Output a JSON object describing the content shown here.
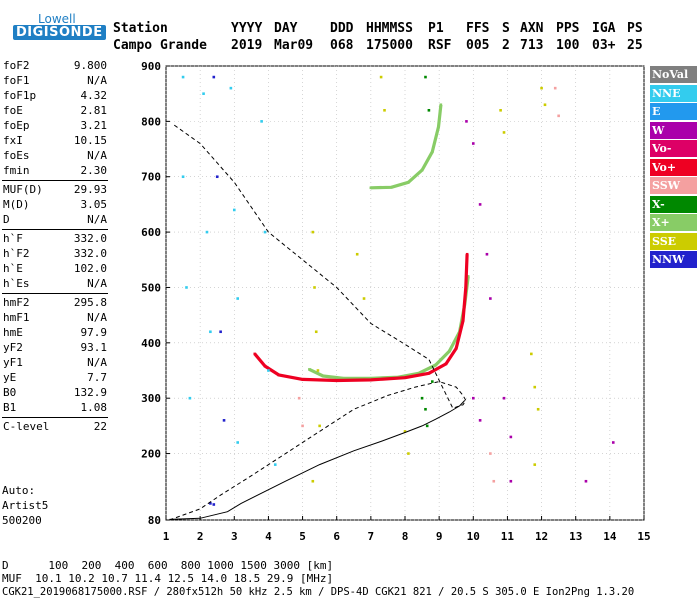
{
  "logo": {
    "line1": "Lowell",
    "line2": "DIGISONDE"
  },
  "header": {
    "labels": [
      "Station",
      "YYYY",
      "DAY",
      "DDD",
      "HHMMSS",
      "P1",
      "FFS",
      "S",
      "AXN",
      "PPS",
      "IGA",
      "PS"
    ],
    "values": [
      "Campo Grande",
      "2019",
      "Mar09",
      "068",
      "175000",
      "RSF",
      "005",
      "2",
      "713",
      "100",
      "03+",
      "25"
    ]
  },
  "params": [
    [
      {
        "k": "foF2",
        "v": "9.800"
      },
      {
        "k": "foF1",
        "v": "N/A"
      },
      {
        "k": "foF1p",
        "v": "4.32"
      },
      {
        "k": "foE",
        "v": "2.81"
      },
      {
        "k": "foEp",
        "v": "3.21"
      },
      {
        "k": "fxI",
        "v": "10.15"
      },
      {
        "k": "foEs",
        "v": "N/A"
      },
      {
        "k": "fmin",
        "v": "2.30"
      }
    ],
    [
      {
        "k": "MUF(D)",
        "v": "29.93"
      },
      {
        "k": "M(D)",
        "v": "3.05"
      },
      {
        "k": "D",
        "v": "N/A"
      }
    ],
    [
      {
        "k": "h`F",
        "v": "332.0"
      },
      {
        "k": "h`F2",
        "v": "332.0"
      },
      {
        "k": "h`E",
        "v": "102.0"
      },
      {
        "k": "h`Es",
        "v": "N/A"
      }
    ],
    [
      {
        "k": "hmF2",
        "v": "295.8"
      },
      {
        "k": "hmF1",
        "v": "N/A"
      },
      {
        "k": "hmE",
        "v": "97.9"
      },
      {
        "k": "yF2",
        "v": "93.1"
      },
      {
        "k": "yF1",
        "v": "N/A"
      },
      {
        "k": "yE",
        "v": "7.7"
      },
      {
        "k": "B0",
        "v": "132.9"
      },
      {
        "k": "B1",
        "v": "1.08"
      }
    ],
    [
      {
        "k": "C-level",
        "v": "22"
      }
    ]
  ],
  "auto": {
    "l1": "Auto:",
    "l2": "Artist5",
    "l3": "500200"
  },
  "legend": [
    {
      "label": "NoVal",
      "color": "#7f7f7f"
    },
    {
      "label": "NNE",
      "color": "#33ccee"
    },
    {
      "label": "E",
      "color": "#2299ee"
    },
    {
      "label": "W",
      "color": "#aa00aa"
    },
    {
      "label": "Vo-",
      "color": "#dd0066"
    },
    {
      "label": "Vo+",
      "color": "#ee0022"
    },
    {
      "label": "SSW",
      "color": "#f4a0a0"
    },
    {
      "label": "X-",
      "color": "#008800"
    },
    {
      "label": "X+",
      "color": "#88cc66"
    },
    {
      "label": "SSE",
      "color": "#cccc00"
    },
    {
      "label": "NNW",
      "color": "#2222cc"
    }
  ],
  "bottom": {
    "d_line": "D      100  200  400  600  800 1000 1500 3000 [km]",
    "muf_line": "MUF  10.1 10.2 10.7 11.4 12.5 14.0 18.5 29.9 [MHz]",
    "file_line": "CGK21_2019068175000.RSF / 280fx512h 50 kHz 2.5 km / DPS-4D CGK21 821 / 20.5 S 305.0 E Ion2Png 1.3.20"
  },
  "chart_data": {
    "type": "scatter",
    "title": "",
    "xlabel": "",
    "ylabel": "",
    "xlim": [
      1,
      15
    ],
    "ylim": [
      80,
      900
    ],
    "x_ticks": [
      1,
      2,
      3,
      4,
      5,
      6,
      7,
      8,
      9,
      10,
      11,
      12,
      13,
      14,
      15
    ],
    "y_ticks": [
      80,
      200,
      300,
      400,
      500,
      600,
      700,
      800,
      900
    ],
    "grid": true,
    "legend_position": "right",
    "series": [
      {
        "name": "X+",
        "color": "#88cc66",
        "points": [
          [
            5.2,
            352
          ],
          [
            5.6,
            340
          ],
          [
            6.2,
            336
          ],
          [
            7,
            336
          ],
          [
            7.8,
            338
          ],
          [
            8.4,
            345
          ],
          [
            8.9,
            360
          ],
          [
            9.3,
            385
          ],
          [
            9.6,
            420
          ],
          [
            9.75,
            470
          ],
          [
            9.85,
            520
          ]
        ]
      },
      {
        "name": "Vo+",
        "color": "#ee0022",
        "points": [
          [
            3.6,
            380
          ],
          [
            3.9,
            358
          ],
          [
            4.3,
            342
          ],
          [
            5,
            334
          ],
          [
            6,
            332
          ],
          [
            7,
            333
          ],
          [
            8,
            337
          ],
          [
            8.7,
            345
          ],
          [
            9.2,
            362
          ],
          [
            9.5,
            390
          ],
          [
            9.7,
            440
          ],
          [
            9.78,
            500
          ],
          [
            9.82,
            560
          ]
        ]
      },
      {
        "name": "X+",
        "color": "#88cc66",
        "points": [
          [
            7.0,
            680
          ],
          [
            7.6,
            681
          ],
          [
            8.1,
            690
          ],
          [
            8.5,
            712
          ],
          [
            8.8,
            745
          ],
          [
            8.98,
            790
          ],
          [
            9.05,
            830
          ]
        ]
      },
      {
        "name": "NNE",
        "color": "#33ccee",
        "points": [
          [
            1.5,
            880
          ],
          [
            1.5,
            700
          ],
          [
            1.6,
            500
          ],
          [
            1.7,
            300
          ],
          [
            2.1,
            850
          ],
          [
            2.2,
            600
          ],
          [
            2.3,
            420
          ],
          [
            2.9,
            860
          ],
          [
            3.0,
            640
          ],
          [
            3.1,
            480
          ],
          [
            3.1,
            220
          ],
          [
            3.8,
            800
          ],
          [
            3.9,
            600
          ],
          [
            4.0,
            350
          ],
          [
            4.2,
            180
          ]
        ]
      },
      {
        "name": "NNW",
        "color": "#2222cc",
        "points": [
          [
            2.4,
            880
          ],
          [
            2.5,
            700
          ],
          [
            2.6,
            420
          ],
          [
            2.7,
            260
          ],
          [
            2.3,
            110
          ],
          [
            2.4,
            108
          ]
        ]
      },
      {
        "name": "SSE",
        "color": "#cccc00",
        "points": [
          [
            5.3,
            600
          ],
          [
            5.35,
            500
          ],
          [
            5.4,
            420
          ],
          [
            5.45,
            350
          ],
          [
            5.5,
            250
          ],
          [
            5.3,
            150
          ],
          [
            6.6,
            560
          ],
          [
            6.8,
            480
          ],
          [
            7.3,
            880
          ],
          [
            7.4,
            820
          ],
          [
            10.8,
            820
          ],
          [
            10.9,
            780
          ],
          [
            11.7,
            380
          ],
          [
            11.8,
            320
          ],
          [
            11.9,
            280
          ],
          [
            12.0,
            860
          ],
          [
            12.1,
            830
          ],
          [
            8,
            240
          ],
          [
            8.1,
            200
          ],
          [
            11.8,
            180
          ]
        ]
      },
      {
        "name": "W",
        "color": "#aa00aa",
        "points": [
          [
            9.8,
            800
          ],
          [
            10.0,
            760
          ],
          [
            10.2,
            650
          ],
          [
            10.4,
            560
          ],
          [
            10.5,
            480
          ],
          [
            10.0,
            300
          ],
          [
            10.2,
            260
          ],
          [
            10.9,
            300
          ],
          [
            11.1,
            230
          ],
          [
            11.1,
            150
          ],
          [
            13.3,
            150
          ],
          [
            14.1,
            220
          ]
        ]
      },
      {
        "name": "X-",
        "color": "#008800",
        "points": [
          [
            8.6,
            880
          ],
          [
            8.7,
            820
          ],
          [
            8.5,
            300
          ],
          [
            8.6,
            280
          ],
          [
            8.65,
            250
          ],
          [
            8.8,
            330
          ]
        ]
      },
      {
        "name": "SSW",
        "color": "#f4a0a0",
        "points": [
          [
            12.4,
            860
          ],
          [
            12.5,
            810
          ],
          [
            10.5,
            200
          ],
          [
            10.6,
            150
          ],
          [
            5.0,
            250
          ],
          [
            4.9,
            300
          ]
        ]
      }
    ],
    "curves": [
      {
        "name": "profile",
        "color": "#000000",
        "style": "solid",
        "points": [
          [
            1.1,
            81
          ],
          [
            2.0,
            83
          ],
          [
            2.8,
            95
          ],
          [
            3.2,
            110
          ],
          [
            4.5,
            150
          ],
          [
            5.5,
            180
          ],
          [
            6.5,
            205
          ],
          [
            7.3,
            222
          ],
          [
            8.0,
            238
          ],
          [
            8.5,
            250
          ],
          [
            8.9,
            262
          ],
          [
            9.3,
            275
          ],
          [
            9.6,
            286
          ],
          [
            9.75,
            296
          ]
        ]
      },
      {
        "name": "model",
        "color": "#000000",
        "style": "dashed",
        "points": [
          [
            1.1,
            80
          ],
          [
            2.0,
            100
          ],
          [
            2.6,
            125
          ],
          [
            3.5,
            160
          ],
          [
            4.5,
            200
          ],
          [
            5.5,
            240
          ],
          [
            6.5,
            280
          ],
          [
            7.5,
            305
          ],
          [
            8.3,
            320
          ],
          [
            9.0,
            330
          ],
          [
            9.5,
            320
          ],
          [
            9.7,
            305
          ],
          [
            9.78,
            296
          ],
          [
            9.7,
            288
          ],
          [
            9.4,
            282
          ],
          [
            8.7,
            370
          ],
          [
            7.8,
            405
          ],
          [
            7.0,
            435
          ],
          [
            6.0,
            500
          ],
          [
            5.0,
            550
          ],
          [
            4.0,
            600
          ],
          [
            3.0,
            690
          ],
          [
            2.0,
            760
          ],
          [
            1.2,
            795
          ]
        ]
      }
    ]
  }
}
